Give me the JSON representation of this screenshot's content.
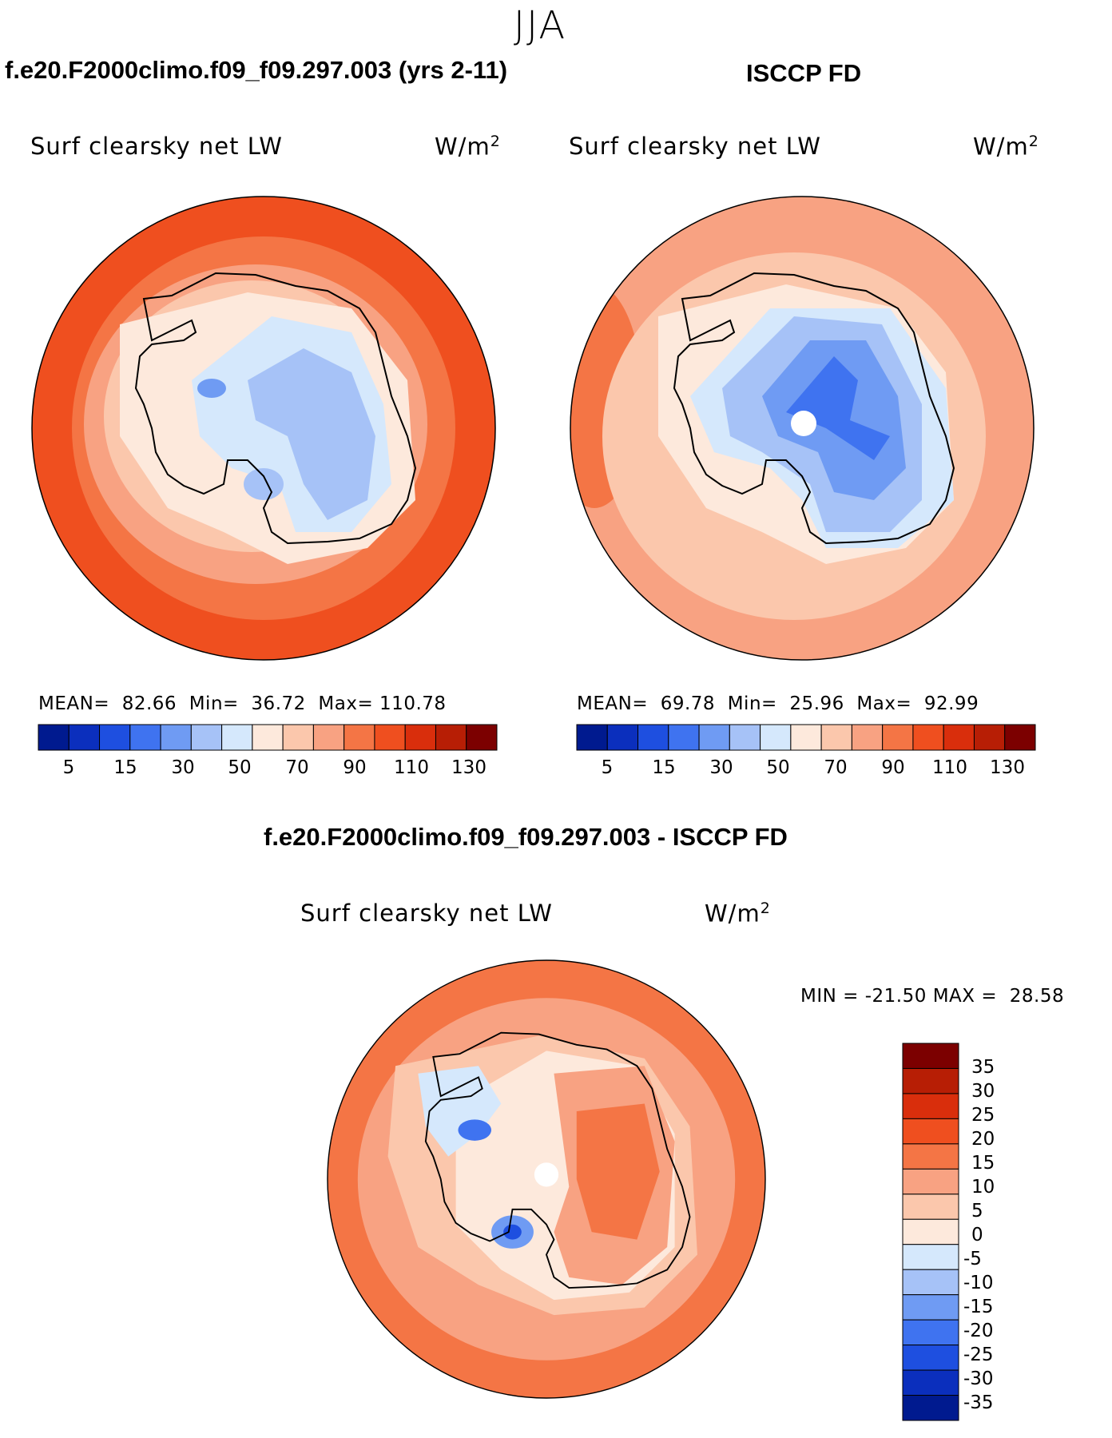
{
  "season": "JJA",
  "colors": {
    "scale": [
      "#001a8f",
      "#0b2fbd",
      "#1e4fe0",
      "#3f73f0",
      "#6f9bf3",
      "#a6c2f7",
      "#d5e8fc",
      "#fde9dc",
      "#fbc7ac",
      "#f8a282",
      "#f47545",
      "#ef4f1f",
      "#d92e0c",
      "#b71e05",
      "#7c0000"
    ],
    "coast": "#000000"
  },
  "panel_model": {
    "title": "f.e20.F2000climo.f09_f09.297.003 (yrs 2-11)",
    "variable": "Surf clearsky net LW",
    "unit_base": "W/m",
    "unit_exp": "2",
    "stats": {
      "mean_label": "MEAN=",
      "mean": "82.66",
      "min_label": "Min=",
      "min": "36.72",
      "max_label": "Max=",
      "max": "110.78"
    },
    "colorbar_ticks": [
      "5",
      "15",
      "30",
      "50",
      "70",
      "90",
      "110",
      "130"
    ]
  },
  "panel_obs": {
    "title": "ISCCP FD",
    "variable": "Surf clearsky net LW",
    "unit_base": "W/m",
    "unit_exp": "2",
    "stats": {
      "mean_label": "MEAN=",
      "mean": "69.78",
      "min_label": "Min=",
      "min": "25.96",
      "max_label": "Max=",
      "max": "92.99"
    },
    "colorbar_ticks": [
      "5",
      "15",
      "30",
      "50",
      "70",
      "90",
      "110",
      "130"
    ]
  },
  "panel_diff": {
    "title": "f.e20.F2000climo.f09_f09.297.003 - ISCCP FD",
    "variable": "Surf clearsky net LW",
    "unit_base": "W/m",
    "unit_exp": "2",
    "stats": {
      "min_label": "MIN =",
      "min": "-21.50",
      "max_label": "MAX =",
      "max": "28.58"
    },
    "colorbar_ticks": [
      "35",
      "30",
      "25",
      "20",
      "15",
      "10",
      "5",
      "0",
      "-5",
      "-10",
      "-15",
      "-20",
      "-25",
      "-30",
      "-35"
    ]
  }
}
